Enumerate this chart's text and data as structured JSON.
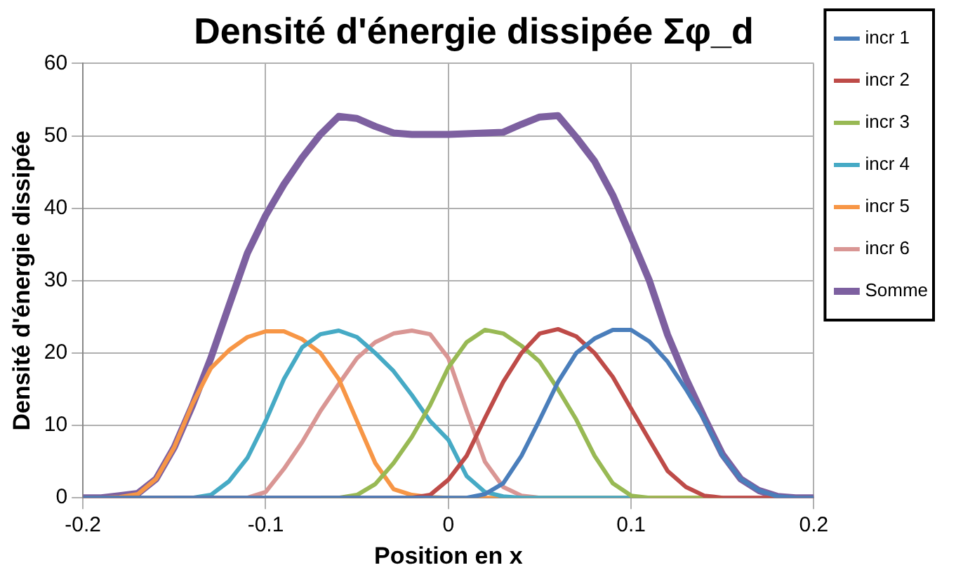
{
  "chart_data": {
    "type": "line",
    "title": "Densité d'énergie dissipée Σφ_d",
    "xlabel": "Position en x",
    "ylabel": "Densité d'énergie dissipée",
    "x": [
      -0.2,
      -0.19,
      -0.18,
      -0.17,
      -0.16,
      -0.15,
      -0.14,
      -0.13,
      -0.12,
      -0.11,
      -0.1,
      -0.09,
      -0.08,
      -0.07,
      -0.06,
      -0.05,
      -0.04,
      -0.03,
      -0.02,
      -0.01,
      0,
      0.01,
      0.02,
      0.03,
      0.04,
      0.05,
      0.06,
      0.07,
      0.08,
      0.09,
      0.1,
      0.11,
      0.12,
      0.13,
      0.14,
      0.15,
      0.16,
      0.17,
      0.18,
      0.19,
      0.2
    ],
    "xlim": [
      -0.2,
      0.2
    ],
    "xticks": [
      -0.2,
      -0.1,
      0,
      0.1,
      0.2
    ],
    "ylim": [
      0,
      60
    ],
    "yticks": [
      0,
      10,
      20,
      30,
      40,
      50,
      60
    ],
    "grid": true,
    "legend": "right",
    "marker": "none",
    "line_style": "solid",
    "series": [
      {
        "name": "incr 1",
        "color": "#4a7ebb",
        "values": [
          0,
          0,
          0,
          0,
          0,
          0,
          0,
          0,
          0,
          0,
          0,
          0,
          0,
          0,
          0,
          0,
          0,
          0,
          0,
          0,
          0,
          0,
          0.5,
          2,
          5.8,
          10.8,
          16,
          20,
          22,
          23.2,
          23.2,
          21.6,
          18.8,
          15,
          10.8,
          5.8,
          2.6,
          1,
          0.2,
          0,
          0
        ]
      },
      {
        "name": "incr 2",
        "color": "#be4b48",
        "values": [
          0,
          0,
          0,
          0,
          0,
          0,
          0,
          0,
          0,
          0,
          0,
          0,
          0,
          0,
          0,
          0,
          0,
          0,
          0,
          0.4,
          2.5,
          5.8,
          11,
          16,
          20,
          22.7,
          23.3,
          22.3,
          20,
          16.7,
          12.3,
          8,
          3.7,
          1.5,
          0.3,
          0,
          0,
          0,
          0,
          0,
          0
        ]
      },
      {
        "name": "incr 3",
        "color": "#98b954",
        "values": [
          null,
          null,
          null,
          null,
          null,
          null,
          null,
          null,
          null,
          null,
          null,
          null,
          null,
          0,
          0,
          0.4,
          1.9,
          4.8,
          8.4,
          12.8,
          18,
          21.5,
          23.2,
          22.7,
          21,
          18.8,
          15,
          10.8,
          5.8,
          2,
          0.3,
          0,
          0,
          0,
          0,
          0,
          null,
          null,
          null,
          null,
          null
        ]
      },
      {
        "name": "incr 4",
        "color": "#46aac5",
        "values": [
          null,
          null,
          null,
          null,
          null,
          0,
          0,
          0.4,
          2.3,
          5.5,
          10.6,
          16.4,
          20.8,
          22.6,
          23.1,
          22.2,
          20,
          17.5,
          14.2,
          10.6,
          8,
          3,
          0.8,
          0.2,
          0,
          0,
          0,
          0,
          0,
          0,
          0,
          0,
          null,
          null,
          null,
          null,
          null,
          null,
          null,
          null,
          null
        ]
      },
      {
        "name": "incr 5",
        "color": "#f79646",
        "values": [
          0,
          0,
          0.1,
          0.5,
          2.6,
          7,
          13,
          17.9,
          20.4,
          22.2,
          23,
          23,
          21.9,
          20,
          16.4,
          10.6,
          4.8,
          1.2,
          0.4,
          0.1,
          0,
          0,
          0,
          0,
          0,
          0,
          0,
          0,
          0,
          0,
          0,
          0,
          0,
          0,
          0,
          0,
          null,
          null,
          null,
          null,
          null
        ]
      },
      {
        "name": "incr 6",
        "color": "#d99694",
        "values": [
          0,
          0,
          0,
          0,
          0,
          0,
          0,
          0,
          0,
          0,
          0.8,
          4,
          7.7,
          12,
          15.7,
          19.3,
          21.5,
          22.7,
          23.1,
          22.6,
          19.3,
          12,
          5,
          1.5,
          0.3,
          0,
          0,
          0,
          0,
          0,
          0,
          0,
          0,
          0,
          0,
          0,
          0,
          0,
          0,
          0,
          0
        ]
      },
      {
        "name": "Somme",
        "color": "#7d60a0",
        "values": [
          0,
          0,
          0.3,
          0.6,
          2.6,
          7,
          12.8,
          19.3,
          26.6,
          33.8,
          39,
          43.3,
          47,
          50.2,
          52.7,
          52.4,
          51.3,
          50.4,
          50.2,
          50.2,
          50.2,
          50.3,
          50.4,
          50.5,
          51.6,
          52.6,
          52.8,
          49.8,
          46.5,
          41.8,
          36,
          30,
          22.5,
          16.5,
          11.1,
          6,
          2.6,
          1,
          0.2,
          0,
          0
        ]
      }
    ]
  }
}
